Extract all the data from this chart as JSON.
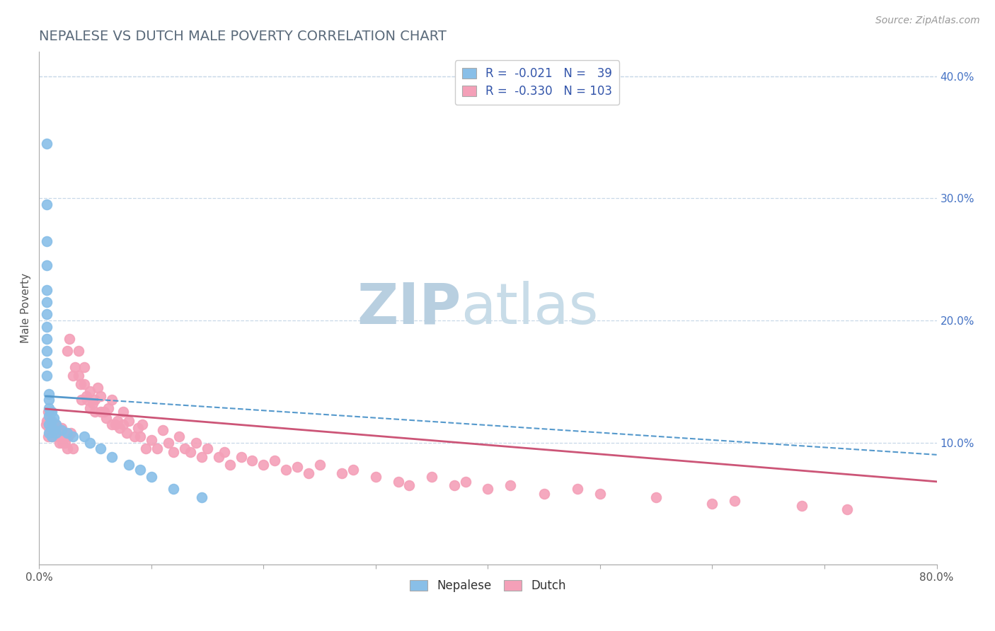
{
  "title": "NEPALESE VS DUTCH MALE POVERTY CORRELATION CHART",
  "source_text": "Source: ZipAtlas.com",
  "ylabel": "Male Poverty",
  "xlim": [
    0.0,
    0.8
  ],
  "ylim": [
    0.0,
    0.42
  ],
  "xticks": [
    0.0,
    0.1,
    0.2,
    0.3,
    0.4,
    0.5,
    0.6,
    0.7,
    0.8
  ],
  "yticks_right": [
    0.0,
    0.1,
    0.2,
    0.3,
    0.4
  ],
  "yticklabels_right": [
    "",
    "10.0%",
    "20.0%",
    "30.0%",
    "40.0%"
  ],
  "nepalese_color": "#89bfe8",
  "dutch_color": "#f4a0b8",
  "nepalese_trend_color": "#5599cc",
  "dutch_trend_color": "#cc5577",
  "background_color": "#ffffff",
  "grid_color": "#c8d8e8",
  "title_color": "#5a6a7a",
  "watermark_color": "#dde8f0",
  "nepalese_x": [
    0.007,
    0.007,
    0.007,
    0.007,
    0.007,
    0.007,
    0.007,
    0.007,
    0.007,
    0.007,
    0.007,
    0.007,
    0.009,
    0.009,
    0.009,
    0.009,
    0.009,
    0.009,
    0.011,
    0.011,
    0.011,
    0.011,
    0.013,
    0.013,
    0.015,
    0.015,
    0.02,
    0.025,
    0.03,
    0.04,
    0.045,
    0.055,
    0.065,
    0.08,
    0.09,
    0.1,
    0.12,
    0.145,
    0.01
  ],
  "nepalese_y": [
    0.345,
    0.295,
    0.265,
    0.245,
    0.225,
    0.215,
    0.205,
    0.195,
    0.185,
    0.175,
    0.165,
    0.155,
    0.14,
    0.135,
    0.128,
    0.122,
    0.115,
    0.108,
    0.125,
    0.118,
    0.112,
    0.105,
    0.12,
    0.11,
    0.115,
    0.108,
    0.11,
    0.108,
    0.105,
    0.105,
    0.1,
    0.095,
    0.088,
    0.082,
    0.078,
    0.072,
    0.062,
    0.055,
    0.125
  ],
  "dutch_x": [
    0.006,
    0.007,
    0.008,
    0.008,
    0.009,
    0.01,
    0.01,
    0.011,
    0.012,
    0.013,
    0.014,
    0.015,
    0.015,
    0.016,
    0.017,
    0.018,
    0.019,
    0.02,
    0.02,
    0.021,
    0.022,
    0.023,
    0.025,
    0.025,
    0.026,
    0.027,
    0.028,
    0.03,
    0.03,
    0.032,
    0.035,
    0.035,
    0.037,
    0.038,
    0.04,
    0.04,
    0.042,
    0.043,
    0.045,
    0.045,
    0.048,
    0.05,
    0.05,
    0.052,
    0.055,
    0.055,
    0.058,
    0.06,
    0.062,
    0.065,
    0.065,
    0.068,
    0.07,
    0.072,
    0.075,
    0.075,
    0.078,
    0.08,
    0.085,
    0.088,
    0.09,
    0.092,
    0.095,
    0.1,
    0.105,
    0.11,
    0.115,
    0.12,
    0.125,
    0.13,
    0.135,
    0.14,
    0.145,
    0.15,
    0.16,
    0.165,
    0.17,
    0.18,
    0.19,
    0.2,
    0.21,
    0.22,
    0.23,
    0.24,
    0.25,
    0.27,
    0.28,
    0.3,
    0.32,
    0.33,
    0.35,
    0.37,
    0.38,
    0.4,
    0.42,
    0.45,
    0.48,
    0.5,
    0.55,
    0.6,
    0.62,
    0.68,
    0.72
  ],
  "dutch_y": [
    0.115,
    0.118,
    0.125,
    0.105,
    0.112,
    0.108,
    0.118,
    0.112,
    0.105,
    0.115,
    0.11,
    0.108,
    0.115,
    0.105,
    0.112,
    0.1,
    0.108,
    0.105,
    0.112,
    0.1,
    0.108,
    0.1,
    0.095,
    0.175,
    0.105,
    0.185,
    0.108,
    0.095,
    0.155,
    0.162,
    0.155,
    0.175,
    0.148,
    0.135,
    0.148,
    0.162,
    0.138,
    0.135,
    0.128,
    0.142,
    0.132,
    0.135,
    0.125,
    0.145,
    0.125,
    0.138,
    0.125,
    0.12,
    0.128,
    0.115,
    0.135,
    0.115,
    0.118,
    0.112,
    0.115,
    0.125,
    0.108,
    0.118,
    0.105,
    0.112,
    0.105,
    0.115,
    0.095,
    0.102,
    0.095,
    0.11,
    0.1,
    0.092,
    0.105,
    0.095,
    0.092,
    0.1,
    0.088,
    0.095,
    0.088,
    0.092,
    0.082,
    0.088,
    0.085,
    0.082,
    0.085,
    0.078,
    0.08,
    0.075,
    0.082,
    0.075,
    0.078,
    0.072,
    0.068,
    0.065,
    0.072,
    0.065,
    0.068,
    0.062,
    0.065,
    0.058,
    0.062,
    0.058,
    0.055,
    0.05,
    0.052,
    0.048,
    0.045
  ],
  "nep_trend_x": [
    0.006,
    0.155
  ],
  "nep_trend_y": [
    0.138,
    0.095
  ],
  "dutch_trend_x_start": 0.006,
  "dutch_trend_x_end": 0.8
}
